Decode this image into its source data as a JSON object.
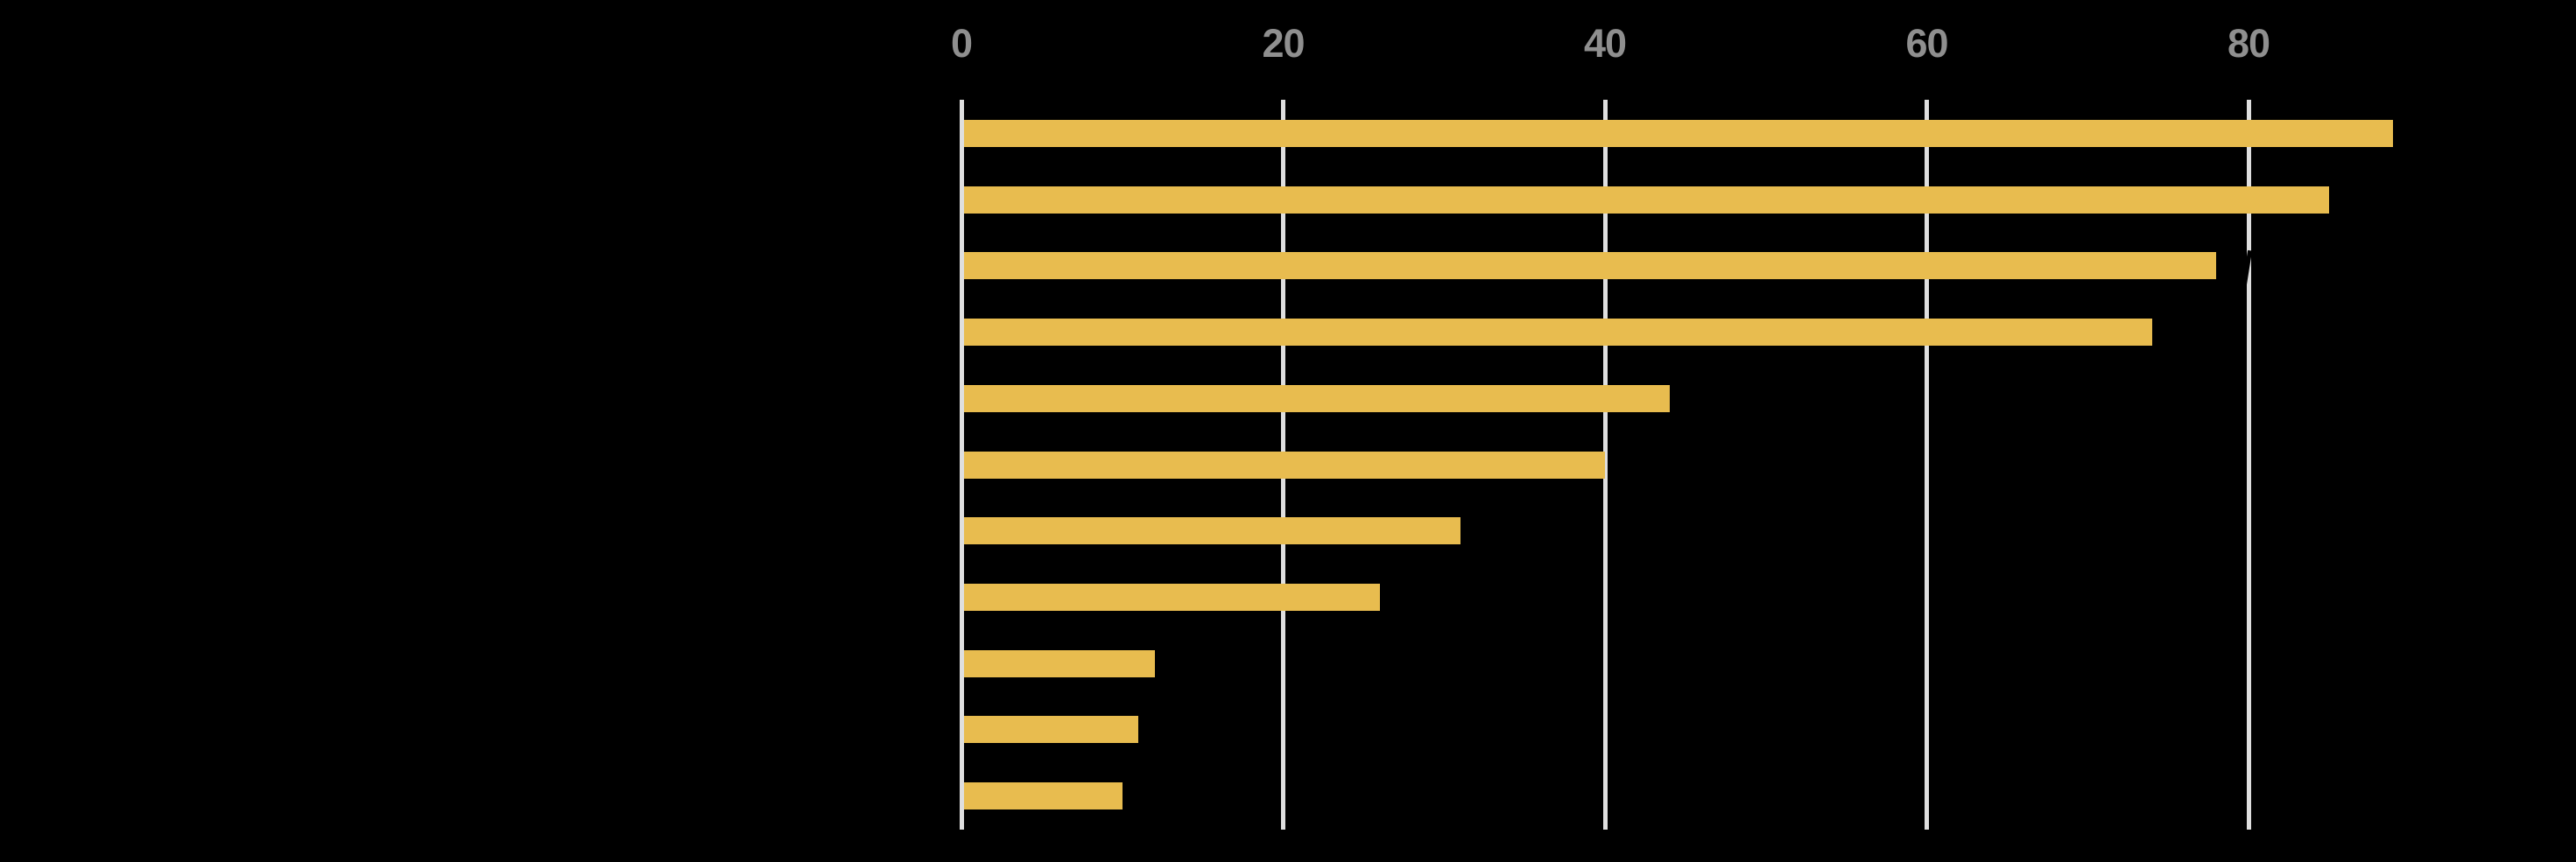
{
  "chart_data": {
    "type": "bar",
    "orientation": "horizontal",
    "title": "",
    "categories": [
      "",
      "",
      "",
      "",
      "",
      "",
      "",
      "",
      "",
      "",
      ""
    ],
    "values": [
      89,
      85,
      78,
      74,
      44,
      40,
      31,
      26,
      12,
      11,
      10
    ],
    "x_ticks": [
      "0",
      "20",
      "40",
      "60",
      "80"
    ],
    "x_tick_values": [
      0,
      20,
      40,
      60,
      80
    ],
    "xlim": [
      0,
      100.4
    ],
    "grid": "vertical-gridlines-on",
    "legend": "none",
    "tick_position": "top",
    "colors": {
      "bar": "#e8bc4f",
      "gridline": "#dfdfdf",
      "tick_label": "#8f8f8f",
      "background": "#000000"
    }
  }
}
